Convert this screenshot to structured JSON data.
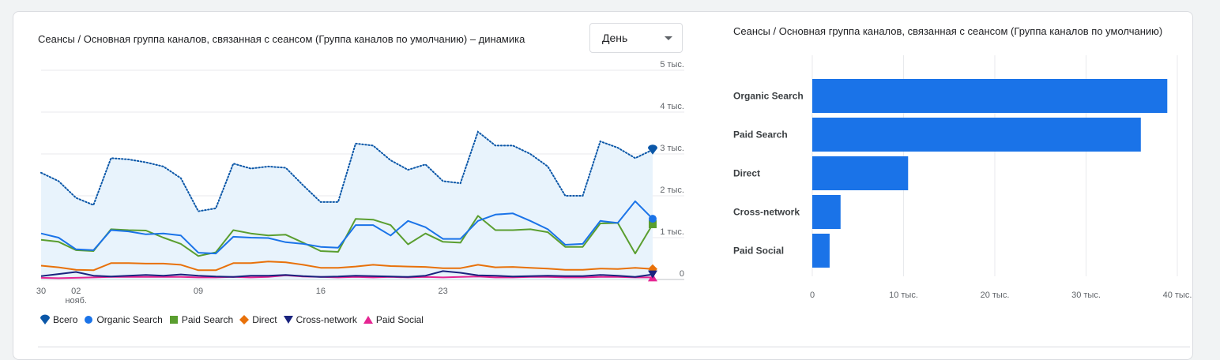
{
  "colors": {
    "total": "#0b57a8",
    "organic": "#1a73e8",
    "paid": "#5a9e2f",
    "direct": "#e8710a",
    "cross": "#1a237e",
    "social": "#e52592",
    "bar": "#1a73e8",
    "area": "#e8f3fc"
  },
  "left_panel": {
    "title": "Сеансы / Основная группа каналов, связанная с сеансом (Группа каналов по умолчанию) – динамика",
    "dropdown": {
      "selected": "День"
    }
  },
  "right_panel": {
    "title": "Сеансы / Основная группа каналов, связанная с сеансом (Группа каналов по умолчанию)"
  },
  "legend": [
    {
      "label": "Всего",
      "icon": "teardrop-icon",
      "series": "total"
    },
    {
      "label": "Organic Search",
      "icon": "circle-icon",
      "series": "organic"
    },
    {
      "label": "Paid Search",
      "icon": "square-icon",
      "series": "paid"
    },
    {
      "label": "Direct",
      "icon": "diamond-icon",
      "series": "direct"
    },
    {
      "label": "Cross-network",
      "icon": "triangle-down-icon",
      "series": "cross"
    },
    {
      "label": "Paid Social",
      "icon": "triangle-up-icon",
      "series": "social"
    }
  ],
  "chart_data": [
    {
      "type": "line",
      "x_start_day": 30,
      "x_tick_labels": [
        {
          "day": 2,
          "label": "02",
          "sublabel": "нояб."
        },
        {
          "day": 9,
          "label": "09",
          "sublabel": ""
        },
        {
          "day": 16,
          "label": "16",
          "sublabel": ""
        },
        {
          "day": 23,
          "label": "23",
          "sublabel": ""
        },
        {
          "day": 30,
          "label": "30",
          "sublabel": ""
        }
      ],
      "y_tick_labels": [
        "0",
        "1 тыс.",
        "2 тыс.",
        "3 тыс.",
        "4 тыс.",
        "5 тыс."
      ],
      "ylim": [
        0,
        5000
      ],
      "grid": true,
      "series": [
        {
          "key": "total",
          "name": "Всего",
          "style": "dotted-area",
          "values": [
            2550,
            2350,
            1950,
            1780,
            2900,
            2870,
            2800,
            2700,
            2420,
            1630,
            1700,
            2770,
            2650,
            2700,
            2670,
            2250,
            1850,
            1850,
            3250,
            3200,
            2850,
            2620,
            2750,
            2350,
            2300,
            3530,
            3200,
            3200,
            3000,
            2700,
            2000,
            2000,
            3300,
            3150,
            2900,
            3100
          ]
        },
        {
          "key": "organic",
          "name": "Organic Search",
          "values": [
            1100,
            1000,
            720,
            700,
            1180,
            1150,
            1080,
            1100,
            1050,
            640,
            620,
            1020,
            1000,
            990,
            890,
            850,
            780,
            760,
            1300,
            1300,
            1050,
            1400,
            1250,
            970,
            970,
            1400,
            1550,
            1580,
            1400,
            1200,
            830,
            850,
            1400,
            1350,
            1870,
            1450
          ]
        },
        {
          "key": "paid",
          "name": "Paid Search",
          "values": [
            950,
            900,
            700,
            680,
            1200,
            1180,
            1170,
            1000,
            850,
            560,
            650,
            1180,
            1100,
            1050,
            1070,
            880,
            680,
            660,
            1450,
            1430,
            1300,
            840,
            1100,
            900,
            880,
            1520,
            1180,
            1180,
            1200,
            1130,
            780,
            780,
            1340,
            1350,
            620,
            1320
          ]
        },
        {
          "key": "direct",
          "name": "Direct",
          "values": [
            330,
            290,
            230,
            220,
            390,
            390,
            380,
            380,
            350,
            220,
            220,
            390,
            390,
            430,
            410,
            350,
            280,
            280,
            310,
            350,
            320,
            310,
            300,
            270,
            270,
            350,
            290,
            300,
            280,
            260,
            230,
            230,
            260,
            250,
            280,
            250
          ]
        },
        {
          "key": "cross",
          "name": "Cross-network",
          "values": [
            80,
            130,
            180,
            90,
            70,
            90,
            110,
            90,
            120,
            90,
            70,
            60,
            90,
            90,
            110,
            80,
            60,
            70,
            90,
            80,
            70,
            60,
            90,
            200,
            160,
            100,
            90,
            70,
            80,
            90,
            80,
            80,
            110,
            90,
            60,
            120
          ]
        },
        {
          "key": "social",
          "name": "Paid Social",
          "values": [
            40,
            30,
            40,
            50,
            60,
            60,
            60,
            60,
            60,
            50,
            50,
            60,
            50,
            60,
            100,
            70,
            60,
            50,
            60,
            50,
            60,
            50,
            60,
            50,
            60,
            70,
            50,
            50,
            60,
            60,
            50,
            50,
            60,
            60,
            50,
            50
          ]
        }
      ]
    },
    {
      "type": "bar",
      "orientation": "horizontal",
      "categories": [
        "Organic Search",
        "Paid Search",
        "Direct",
        "Cross-network",
        "Paid Social"
      ],
      "values": [
        38900,
        36000,
        10500,
        3100,
        1900
      ],
      "x_tick_labels": [
        "0",
        "10 тыс.",
        "20 тыс.",
        "30 тыс.",
        "40 тыс."
      ],
      "xlim": [
        0,
        40000
      ],
      "grid": true
    }
  ]
}
